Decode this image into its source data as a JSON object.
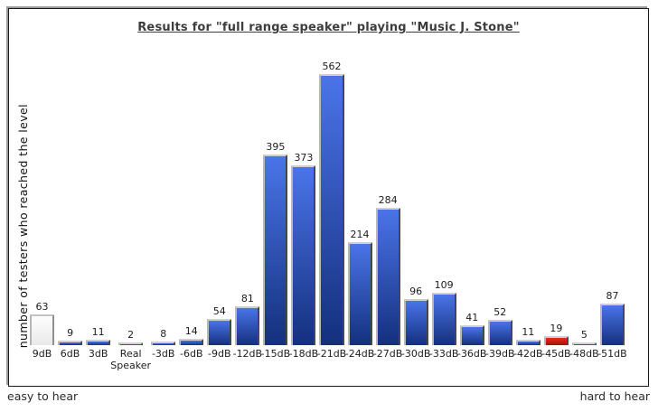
{
  "title": "Results for \"full range speaker\" playing \"Music J. Stone\"",
  "y_axis_label": "number of testers who reached the level",
  "footer": {
    "left": "easy to hear",
    "right": "hard to hear"
  },
  "colors": {
    "blue_top": "#4a74e8",
    "blue_bottom": "#14307d",
    "red_top": "#e92a18",
    "red_bottom": "#9e1308",
    "white_top": "#fdfdfd",
    "white_bottom": "#e9e9e9"
  },
  "chart_data": {
    "type": "bar",
    "title": "Results for \"full range speaker\" playing \"Music J. Stone\"",
    "xlabel": "",
    "ylabel": "number of testers who reached the level",
    "categories": [
      "9dB",
      "6dB",
      "3dB",
      "Real Speaker",
      "-3dB",
      "-6dB",
      "-9dB",
      "-12dB",
      "-15dB",
      "-18dB",
      "-21dB",
      "-24dB",
      "-27dB",
      "-30dB",
      "-33dB",
      "-36dB",
      "-39dB",
      "-42dB",
      "-45dB",
      "-48dB",
      "-51dB"
    ],
    "values": [
      63,
      9,
      11,
      2,
      8,
      14,
      54,
      81,
      395,
      373,
      562,
      214,
      284,
      96,
      109,
      41,
      52,
      11,
      19,
      5,
      87
    ],
    "bar_styles": [
      "white",
      "blue",
      "blue",
      "blue",
      "blue",
      "blue",
      "blue",
      "blue",
      "blue",
      "blue",
      "blue",
      "blue",
      "blue",
      "blue",
      "blue",
      "blue",
      "blue",
      "blue",
      "red",
      "blue",
      "blue"
    ],
    "ylim": [
      0,
      580
    ],
    "grid": false,
    "legend": false,
    "value_labels": true,
    "annotations": {
      "bottom_left": "easy to hear",
      "bottom_right": "hard to hear"
    }
  }
}
